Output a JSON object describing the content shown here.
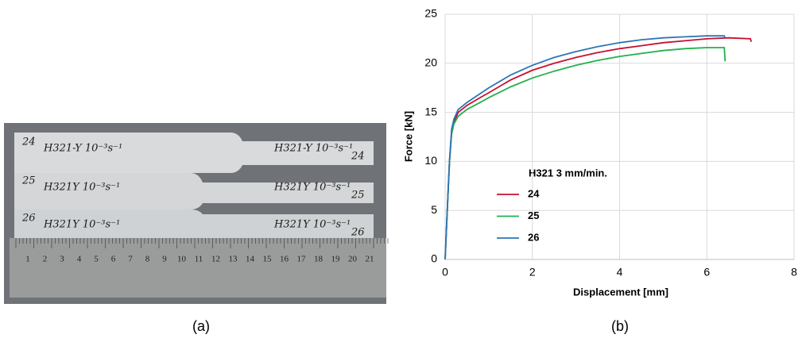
{
  "captions": [
    "(a)",
    "(b)"
  ],
  "photo": {
    "specimens": [
      {
        "left_number": "24",
        "left_label": "H321-Y 10⁻³s⁻¹",
        "right_label": "H321-Y 10⁻³s⁻¹",
        "right_number": "24"
      },
      {
        "left_number": "25",
        "left_label": "H321Y 10⁻³s⁻¹",
        "right_label": "H321Y 10⁻³s⁻¹",
        "right_number": "25"
      },
      {
        "left_number": "26",
        "left_label": "H321Y 10⁻³s⁻¹",
        "right_label": "H321Y 10⁻³s⁻¹",
        "right_number": "26"
      }
    ],
    "ruler_numbers": [
      1,
      2,
      3,
      4,
      5,
      6,
      7,
      8,
      9,
      10,
      11,
      12,
      13,
      14,
      15,
      16,
      17,
      18,
      19,
      20,
      21
    ]
  },
  "chart_data": {
    "type": "line",
    "xlabel": "Displacement [mm]",
    "ylabel": "Force [kN]",
    "legend_title": "H321 3 mm/min.",
    "xlim": [
      0,
      8
    ],
    "xticks": [
      0,
      2,
      4,
      6,
      8
    ],
    "ylim": [
      0,
      25
    ],
    "yticks": [
      0,
      5,
      10,
      15,
      20,
      25
    ],
    "grid": true,
    "series": [
      {
        "name": "24",
        "color": "#c8102e",
        "x": [
          0,
          0.05,
          0.1,
          0.15,
          0.2,
          0.3,
          0.5,
          0.8,
          1,
          1.5,
          2,
          2.5,
          3,
          3.5,
          4,
          4.5,
          5,
          5.5,
          6,
          6.5,
          7,
          7.02
        ],
        "values": [
          0,
          5,
          10,
          13,
          14,
          15,
          15.7,
          16.5,
          17,
          18.3,
          19.3,
          20,
          20.6,
          21.1,
          21.5,
          21.8,
          22.1,
          22.3,
          22.5,
          22.6,
          22.5,
          22.2
        ]
      },
      {
        "name": "25",
        "color": "#22b14c",
        "x": [
          0,
          0.05,
          0.1,
          0.15,
          0.2,
          0.3,
          0.5,
          0.8,
          1,
          1.5,
          2,
          2.5,
          3,
          3.5,
          4,
          4.5,
          5,
          5.5,
          6,
          6.4,
          6.42
        ],
        "values": [
          0,
          5,
          10,
          12.8,
          13.8,
          14.6,
          15.3,
          16,
          16.5,
          17.6,
          18.5,
          19.2,
          19.8,
          20.3,
          20.7,
          21,
          21.3,
          21.5,
          21.6,
          21.6,
          20.2
        ]
      },
      {
        "name": "26",
        "color": "#2e75b6",
        "x": [
          0,
          0.05,
          0.1,
          0.15,
          0.2,
          0.3,
          0.5,
          0.8,
          1,
          1.5,
          2,
          2.5,
          3,
          3.5,
          4,
          4.5,
          5,
          5.5,
          6,
          6.4,
          6.42
        ],
        "values": [
          0,
          5,
          10,
          13.3,
          14.3,
          15.3,
          16,
          16.9,
          17.5,
          18.8,
          19.8,
          20.6,
          21.2,
          21.7,
          22.1,
          22.4,
          22.6,
          22.7,
          22.8,
          22.8,
          22.6
        ]
      }
    ]
  }
}
